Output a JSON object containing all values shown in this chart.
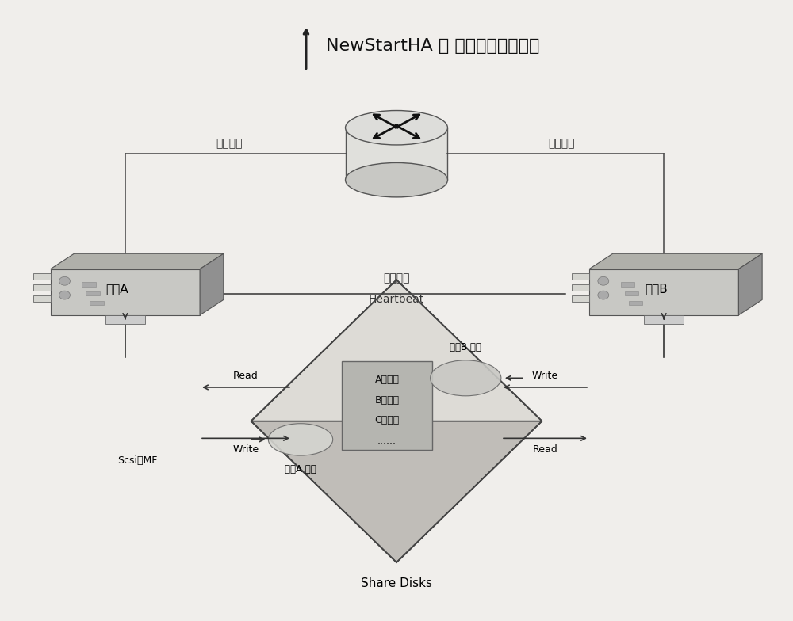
{
  "title": "NewStartHA － 磁盘服务锁拓扑图",
  "bg_color": "#f0eeeb",
  "node_a_label": "节点A",
  "node_b_label": "节点B",
  "public_net_left": "公有网络",
  "public_net_right": "公有网络",
  "private_net": "私有网络",
  "heartbeat": "Heartbeat",
  "read_label_left": "Read",
  "write_label_left": "Write",
  "write_label_right": "Write",
  "read_label_right": "Read",
  "scsi_label": "Scsi或MF",
  "share_disks": "Share Disks",
  "node_a_heartbeat": "节点A 心跳",
  "node_b_heartbeat": "节点B 心跳",
  "service_locks": [
    "A服务锁",
    "B服务锁",
    "C服务锁",
    "......"
  ]
}
